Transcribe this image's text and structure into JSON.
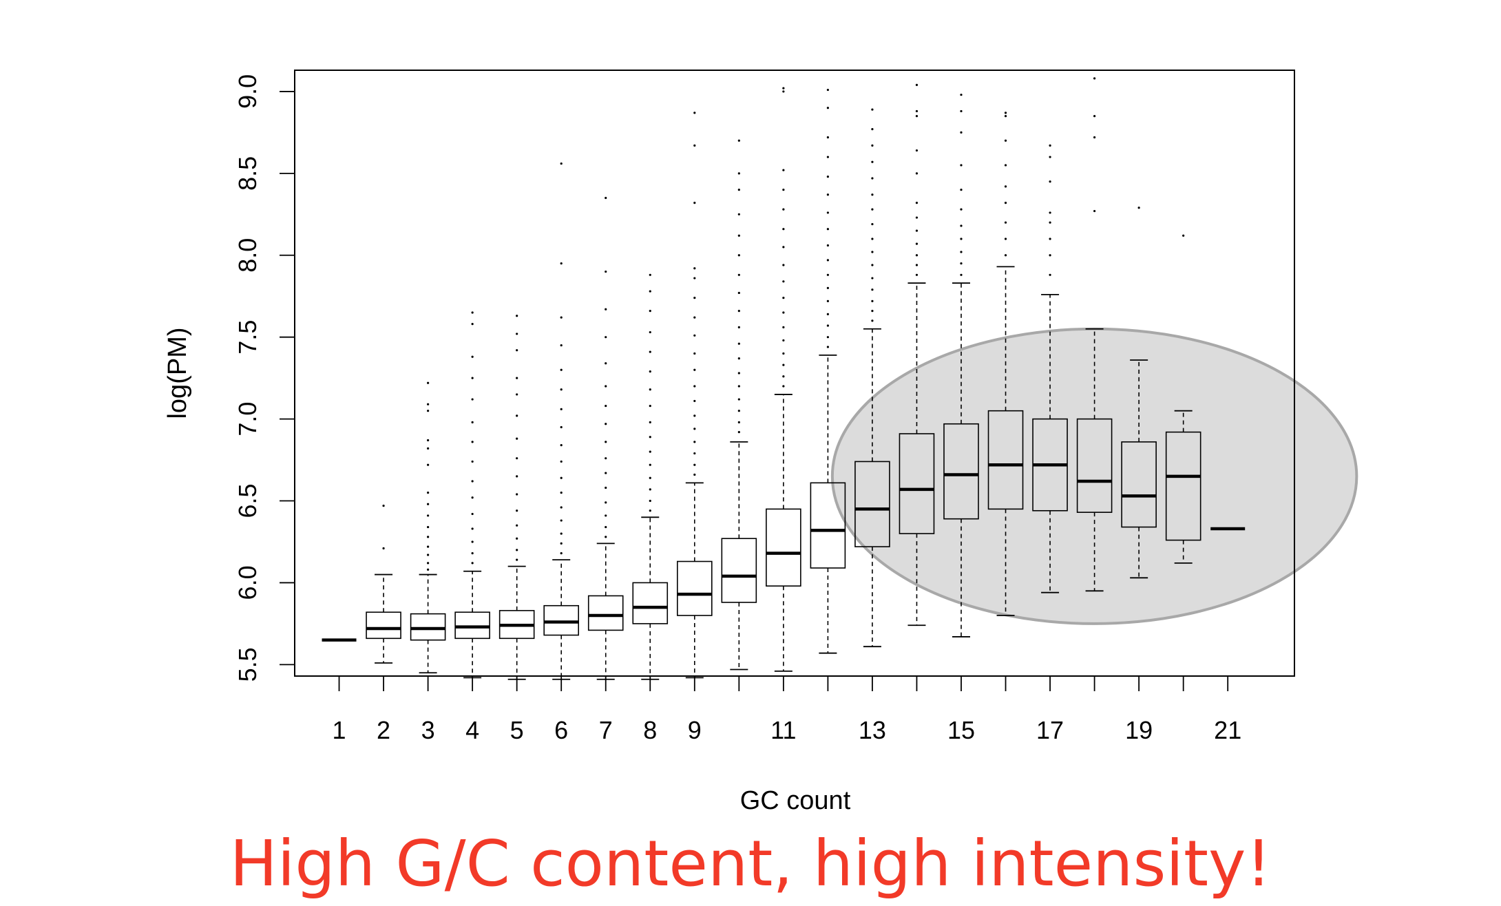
{
  "chart_data": {
    "type": "boxplot",
    "xlabel": "GC count",
    "ylabel": "log(PM)",
    "ylim": [
      5.43,
      9.13
    ],
    "xlim": [
      0.0,
      22.5
    ],
    "x_tick_labels": [
      "1",
      "2",
      "3",
      "4",
      "5",
      "6",
      "7",
      "8",
      "9",
      "11",
      "13",
      "15",
      "17",
      "19",
      "21"
    ],
    "y_tick_labels": [
      "5.5",
      "6.0",
      "6.5",
      "7.0",
      "7.5",
      "8.0",
      "8.5",
      "9.0"
    ],
    "y_ticks": [
      5.5,
      6.0,
      6.5,
      7.0,
      7.5,
      8.0,
      8.5,
      9.0
    ],
    "boxes": [
      {
        "x": 1,
        "q1": 5.65,
        "median": 5.65,
        "q3": 5.65,
        "lower_whisker": 5.65,
        "upper_whisker": 5.65,
        "outliers": []
      },
      {
        "x": 2,
        "q1": 5.66,
        "median": 5.72,
        "q3": 5.82,
        "lower_whisker": 5.51,
        "upper_whisker": 6.05,
        "outliers": [
          6.21,
          6.47
        ]
      },
      {
        "x": 3,
        "q1": 5.65,
        "median": 5.72,
        "q3": 5.81,
        "lower_whisker": 5.45,
        "upper_whisker": 6.05,
        "outliers": [
          6.08,
          6.12,
          6.17,
          6.22,
          6.28,
          6.34,
          6.41,
          6.48,
          6.55,
          6.72,
          6.82,
          6.87,
          7.05,
          7.09,
          7.22
        ]
      },
      {
        "x": 4,
        "q1": 5.66,
        "median": 5.73,
        "q3": 5.82,
        "lower_whisker": 5.42,
        "upper_whisker": 6.07,
        "outliers": [
          6.12,
          6.18,
          6.25,
          6.33,
          6.42,
          6.52,
          6.62,
          6.74,
          6.86,
          6.98,
          7.12,
          7.25,
          7.38,
          7.58,
          7.65
        ]
      },
      {
        "x": 5,
        "q1": 5.66,
        "median": 5.74,
        "q3": 5.83,
        "lower_whisker": 5.41,
        "upper_whisker": 6.1,
        "outliers": [
          6.14,
          6.2,
          6.27,
          6.35,
          6.44,
          6.54,
          6.65,
          6.76,
          6.88,
          7.02,
          7.15,
          7.25,
          7.42,
          7.52,
          7.63
        ]
      },
      {
        "x": 6,
        "q1": 5.68,
        "median": 5.76,
        "q3": 5.86,
        "lower_whisker": 5.41,
        "upper_whisker": 6.14,
        "outliers": [
          6.18,
          6.24,
          6.3,
          6.38,
          6.46,
          6.55,
          6.64,
          6.74,
          6.84,
          6.95,
          7.06,
          7.18,
          7.3,
          7.45,
          7.62,
          7.95,
          8.56
        ]
      },
      {
        "x": 7,
        "q1": 5.71,
        "median": 5.8,
        "q3": 5.92,
        "lower_whisker": 5.41,
        "upper_whisker": 6.24,
        "outliers": [
          6.28,
          6.34,
          6.41,
          6.49,
          6.58,
          6.67,
          6.76,
          6.86,
          6.97,
          7.08,
          7.2,
          7.34,
          7.5,
          7.67,
          7.9,
          8.35
        ]
      },
      {
        "x": 8,
        "q1": 5.75,
        "median": 5.85,
        "q3": 6.0,
        "lower_whisker": 5.41,
        "upper_whisker": 6.4,
        "outliers": [
          6.44,
          6.5,
          6.57,
          6.64,
          6.72,
          6.8,
          6.89,
          6.98,
          7.08,
          7.18,
          7.29,
          7.41,
          7.53,
          7.66,
          7.78,
          7.88
        ]
      },
      {
        "x": 9,
        "q1": 5.8,
        "median": 5.93,
        "q3": 6.13,
        "lower_whisker": 5.42,
        "upper_whisker": 6.61,
        "outliers": [
          6.66,
          6.72,
          6.79,
          6.86,
          6.94,
          7.02,
          7.11,
          7.2,
          7.3,
          7.4,
          7.51,
          7.62,
          7.74,
          7.86,
          7.92,
          8.32,
          8.67,
          8.87
        ]
      },
      {
        "x": 10,
        "q1": 5.88,
        "median": 6.04,
        "q3": 6.27,
        "lower_whisker": 5.47,
        "upper_whisker": 6.86,
        "outliers": [
          6.92,
          6.98,
          7.05,
          7.12,
          7.2,
          7.28,
          7.37,
          7.46,
          7.56,
          7.66,
          7.77,
          7.88,
          8.0,
          8.12,
          8.25,
          8.4,
          8.5,
          8.7
        ]
      },
      {
        "x": 11,
        "q1": 5.98,
        "median": 6.18,
        "q3": 6.45,
        "lower_whisker": 5.46,
        "upper_whisker": 7.15,
        "outliers": [
          7.2,
          7.26,
          7.33,
          7.4,
          7.48,
          7.56,
          7.65,
          7.74,
          7.84,
          7.94,
          8.05,
          8.16,
          8.28,
          8.4,
          8.52,
          9.0,
          9.02
        ]
      },
      {
        "x": 12,
        "q1": 6.09,
        "median": 6.32,
        "q3": 6.61,
        "lower_whisker": 5.57,
        "upper_whisker": 7.39,
        "outliers": [
          7.44,
          7.5,
          7.57,
          7.64,
          7.72,
          7.8,
          7.88,
          7.97,
          8.06,
          8.16,
          8.26,
          8.37,
          8.48,
          8.6,
          8.72,
          8.9,
          9.01
        ]
      },
      {
        "x": 13,
        "q1": 6.22,
        "median": 6.45,
        "q3": 6.74,
        "lower_whisker": 5.61,
        "upper_whisker": 7.55,
        "outliers": [
          7.6,
          7.66,
          7.72,
          7.79,
          7.86,
          7.94,
          8.02,
          8.1,
          8.19,
          8.28,
          8.37,
          8.47,
          8.57,
          8.67,
          8.77,
          8.89
        ]
      },
      {
        "x": 14,
        "q1": 6.3,
        "median": 6.57,
        "q3": 6.91,
        "lower_whisker": 5.74,
        "upper_whisker": 7.83,
        "outliers": [
          7.88,
          7.94,
          8.0,
          8.07,
          8.15,
          8.23,
          8.32,
          8.5,
          8.64,
          8.85,
          8.88,
          9.04
        ]
      },
      {
        "x": 15,
        "q1": 6.39,
        "median": 6.66,
        "q3": 6.97,
        "lower_whisker": 5.67,
        "upper_whisker": 7.83,
        "outliers": [
          7.88,
          7.95,
          8.02,
          8.1,
          8.18,
          8.28,
          8.4,
          8.55,
          8.75,
          8.88,
          8.98
        ]
      },
      {
        "x": 16,
        "q1": 6.45,
        "median": 6.72,
        "q3": 7.05,
        "lower_whisker": 5.8,
        "upper_whisker": 7.93,
        "outliers": [
          8.0,
          8.1,
          8.2,
          8.32,
          8.42,
          8.55,
          8.7,
          8.85,
          8.87
        ]
      },
      {
        "x": 17,
        "q1": 6.44,
        "median": 6.72,
        "q3": 7.0,
        "lower_whisker": 5.94,
        "upper_whisker": 7.76,
        "outliers": [
          7.88,
          8.0,
          8.1,
          8.2,
          8.26,
          8.45,
          8.6,
          8.67
        ]
      },
      {
        "x": 18,
        "q1": 6.43,
        "median": 6.62,
        "q3": 7.0,
        "lower_whisker": 5.95,
        "upper_whisker": 7.55,
        "outliers": [
          8.27,
          8.72,
          8.85,
          9.08
        ]
      },
      {
        "x": 19,
        "q1": 6.34,
        "median": 6.53,
        "q3": 6.86,
        "lower_whisker": 6.03,
        "upper_whisker": 7.36,
        "outliers": [
          8.29
        ]
      },
      {
        "x": 20,
        "q1": 6.26,
        "median": 6.65,
        "q3": 6.92,
        "lower_whisker": 6.12,
        "upper_whisker": 7.05,
        "outliers": [
          8.12
        ]
      },
      {
        "x": 21,
        "q1": 6.33,
        "median": 6.33,
        "q3": 6.33,
        "lower_whisker": 6.33,
        "upper_whisker": 6.33,
        "outliers": []
      }
    ],
    "highlight": {
      "x_center": 18.0,
      "x_radius": 5.9,
      "y_center": 6.65,
      "y_radius": 0.9,
      "fill": "#dcdcdc",
      "stroke": "#a8a8a8"
    },
    "grid": false
  },
  "caption": {
    "text": "High G/C content, high intensity!",
    "color": "#f23a28"
  }
}
